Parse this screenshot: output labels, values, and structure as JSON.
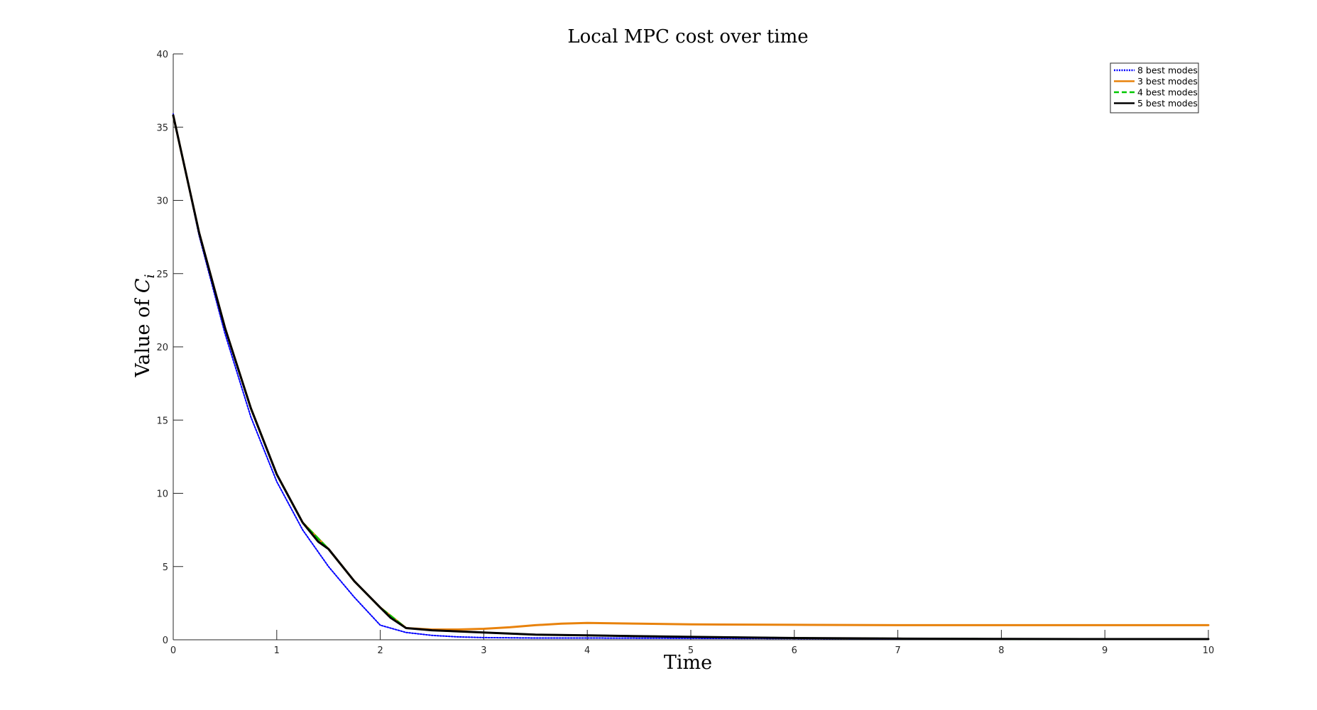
{
  "chart_data": {
    "type": "line",
    "title": "Local MPC cost over time",
    "xlabel": "Time",
    "ylabel_prefix": "Value of ",
    "ylabel_math": "C",
    "ylabel_subscript": "i",
    "xlim": [
      0,
      10
    ],
    "ylim": [
      0,
      40
    ],
    "xticks": [
      0,
      1,
      2,
      3,
      4,
      5,
      6,
      7,
      8,
      9,
      10
    ],
    "yticks": [
      0,
      5,
      10,
      15,
      20,
      25,
      30,
      35,
      40
    ],
    "grid": false,
    "legend_position": "top-right",
    "series": [
      {
        "name": "8 best modes",
        "color": "#0000ff",
        "style": "dotted",
        "x": [
          0,
          0.25,
          0.5,
          0.75,
          1.0,
          1.25,
          1.5,
          1.75,
          2.0,
          2.25,
          2.5,
          2.75,
          3.0,
          3.5,
          4.0,
          5.0,
          6.0,
          7.0,
          8.0,
          9.0,
          10.0
        ],
        "y": [
          35.9,
          27.6,
          20.9,
          15.2,
          10.8,
          7.5,
          5.0,
          2.9,
          1.0,
          0.5,
          0.3,
          0.2,
          0.15,
          0.12,
          0.12,
          0.1,
          0.08,
          0.06,
          0.05,
          0.05,
          0.05
        ]
      },
      {
        "name": "3 best modes",
        "color": "#e8820c",
        "style": "solid",
        "x": [
          0,
          0.25,
          0.5,
          0.75,
          1.0,
          1.25,
          1.5,
          1.75,
          2.0,
          2.25,
          2.5,
          2.75,
          3.0,
          3.25,
          3.5,
          3.75,
          4.0,
          4.5,
          5.0,
          6.0,
          7.0,
          8.0,
          9.0,
          10.0
        ],
        "y": [
          35.8,
          27.8,
          21.3,
          15.8,
          11.3,
          8.0,
          6.2,
          4.0,
          2.2,
          0.8,
          0.7,
          0.7,
          0.75,
          0.85,
          1.0,
          1.1,
          1.15,
          1.1,
          1.05,
          1.02,
          1.0,
          1.0,
          1.0,
          1.0
        ]
      },
      {
        "name": "4 best modes",
        "color": "#00c800",
        "style": "dashed",
        "x": [
          0,
          0.25,
          0.5,
          0.75,
          1.0,
          1.25,
          1.5,
          1.75,
          2.0,
          2.25,
          2.5,
          3.0,
          3.5,
          4.0,
          5.0,
          6.0,
          7.0,
          8.0,
          9.0,
          10.0
        ],
        "y": [
          35.8,
          27.8,
          21.3,
          15.8,
          11.3,
          8.0,
          6.2,
          4.0,
          2.2,
          0.8,
          0.65,
          0.5,
          0.35,
          0.3,
          0.2,
          0.12,
          0.08,
          0.06,
          0.05,
          0.05
        ]
      },
      {
        "name": "5 best modes",
        "color": "#000000",
        "style": "solid",
        "x": [
          0,
          0.25,
          0.5,
          0.75,
          1.0,
          1.25,
          1.4,
          1.5,
          1.75,
          2.0,
          2.1,
          2.25,
          2.5,
          3.0,
          3.5,
          4.0,
          5.0,
          6.0,
          7.0,
          8.0,
          9.0,
          10.0
        ],
        "y": [
          35.8,
          27.8,
          21.3,
          15.8,
          11.3,
          8.0,
          6.7,
          6.2,
          4.0,
          2.2,
          1.5,
          0.8,
          0.65,
          0.5,
          0.35,
          0.3,
          0.2,
          0.12,
          0.08,
          0.06,
          0.05,
          0.05
        ]
      }
    ]
  }
}
